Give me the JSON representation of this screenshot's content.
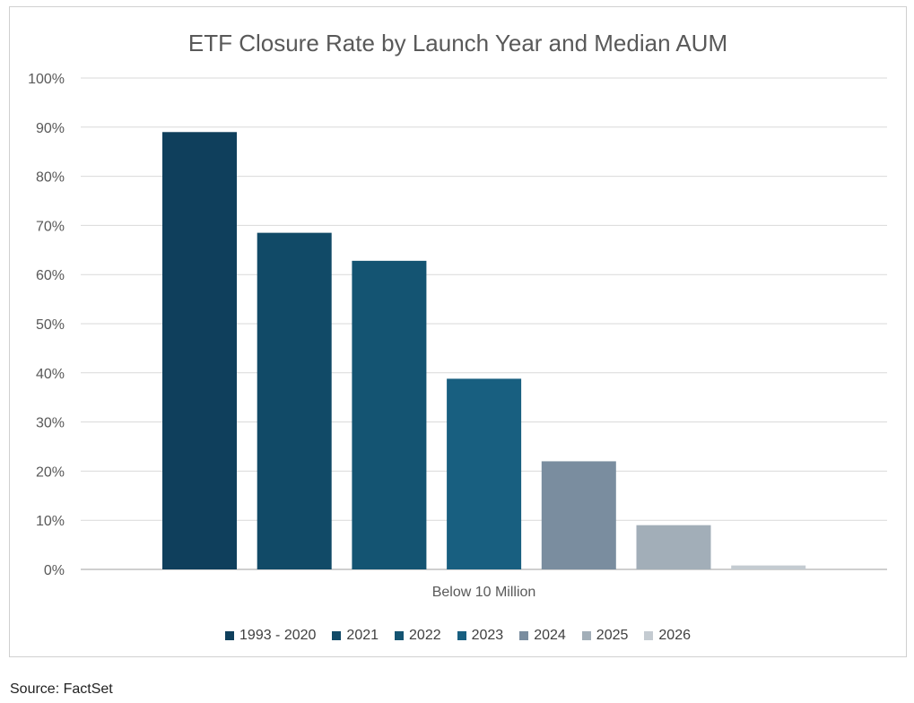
{
  "chart_data": {
    "type": "bar",
    "title": "ETF Closure Rate by Launch Year and Median AUM",
    "categories": [
      "Below 10 Million"
    ],
    "ylim": [
      0,
      100
    ],
    "yticks": [
      0,
      10,
      20,
      30,
      40,
      50,
      60,
      70,
      80,
      90,
      100
    ],
    "ytick_labels": [
      "0%",
      "10%",
      "20%",
      "30%",
      "40%",
      "50%",
      "60%",
      "70%",
      "80%",
      "90%",
      "100%"
    ],
    "grid": true,
    "legend_position": "bottom",
    "series": [
      {
        "name": "1993 - 2020",
        "values": [
          89
        ],
        "color": "#0f3f5c"
      },
      {
        "name": "2021",
        "values": [
          68.5
        ],
        "color": "#114a67"
      },
      {
        "name": "2022",
        "values": [
          62.8
        ],
        "color": "#145472"
      },
      {
        "name": "2023",
        "values": [
          38.8
        ],
        "color": "#185f80"
      },
      {
        "name": "2024",
        "values": [
          22
        ],
        "color": "#7a8d9f"
      },
      {
        "name": "2025",
        "values": [
          9
        ],
        "color": "#a2aeb8"
      },
      {
        "name": "2026",
        "values": [
          0.8
        ],
        "color": "#c4cbd1"
      }
    ]
  },
  "source": "Source: FactSet"
}
